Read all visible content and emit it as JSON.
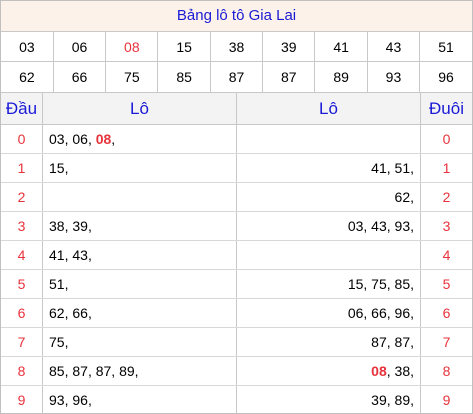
{
  "title": "Bảng lô tô Gia Lai",
  "numbers": {
    "row1": [
      "03",
      "06",
      "08",
      "15",
      "38",
      "39",
      "41",
      "43",
      "51"
    ],
    "row2": [
      "62",
      "66",
      "75",
      "85",
      "87",
      "87",
      "89",
      "93",
      "96"
    ],
    "highlighted": "08"
  },
  "headers": {
    "dau": "Đầu",
    "lo_left": "Lô",
    "lo_right": "Lô",
    "duoi": "Đuôi"
  },
  "rows": [
    {
      "digit": "0",
      "left": [
        "03",
        "06",
        "08"
      ],
      "right": []
    },
    {
      "digit": "1",
      "left": [
        "15"
      ],
      "right": [
        "41",
        "51"
      ]
    },
    {
      "digit": "2",
      "left": [],
      "right": [
        "62"
      ]
    },
    {
      "digit": "3",
      "left": [
        "38",
        "39"
      ],
      "right": [
        "03",
        "43",
        "93"
      ]
    },
    {
      "digit": "4",
      "left": [
        "41",
        "43"
      ],
      "right": []
    },
    {
      "digit": "5",
      "left": [
        "51"
      ],
      "right": [
        "15",
        "75",
        "85"
      ]
    },
    {
      "digit": "6",
      "left": [
        "62",
        "66"
      ],
      "right": [
        "06",
        "66",
        "96"
      ]
    },
    {
      "digit": "7",
      "left": [
        "75"
      ],
      "right": [
        "87",
        "87"
      ]
    },
    {
      "digit": "8",
      "left": [
        "85",
        "87",
        "87",
        "89"
      ],
      "right": [
        "08",
        "38"
      ]
    },
    {
      "digit": "9",
      "left": [
        "93",
        "96"
      ],
      "right": [
        "39",
        "89"
      ]
    }
  ],
  "colors": {
    "accent_blue": "#1a1ad6",
    "accent_red": "#e8323c",
    "title_bg": "#fdf2e9"
  }
}
